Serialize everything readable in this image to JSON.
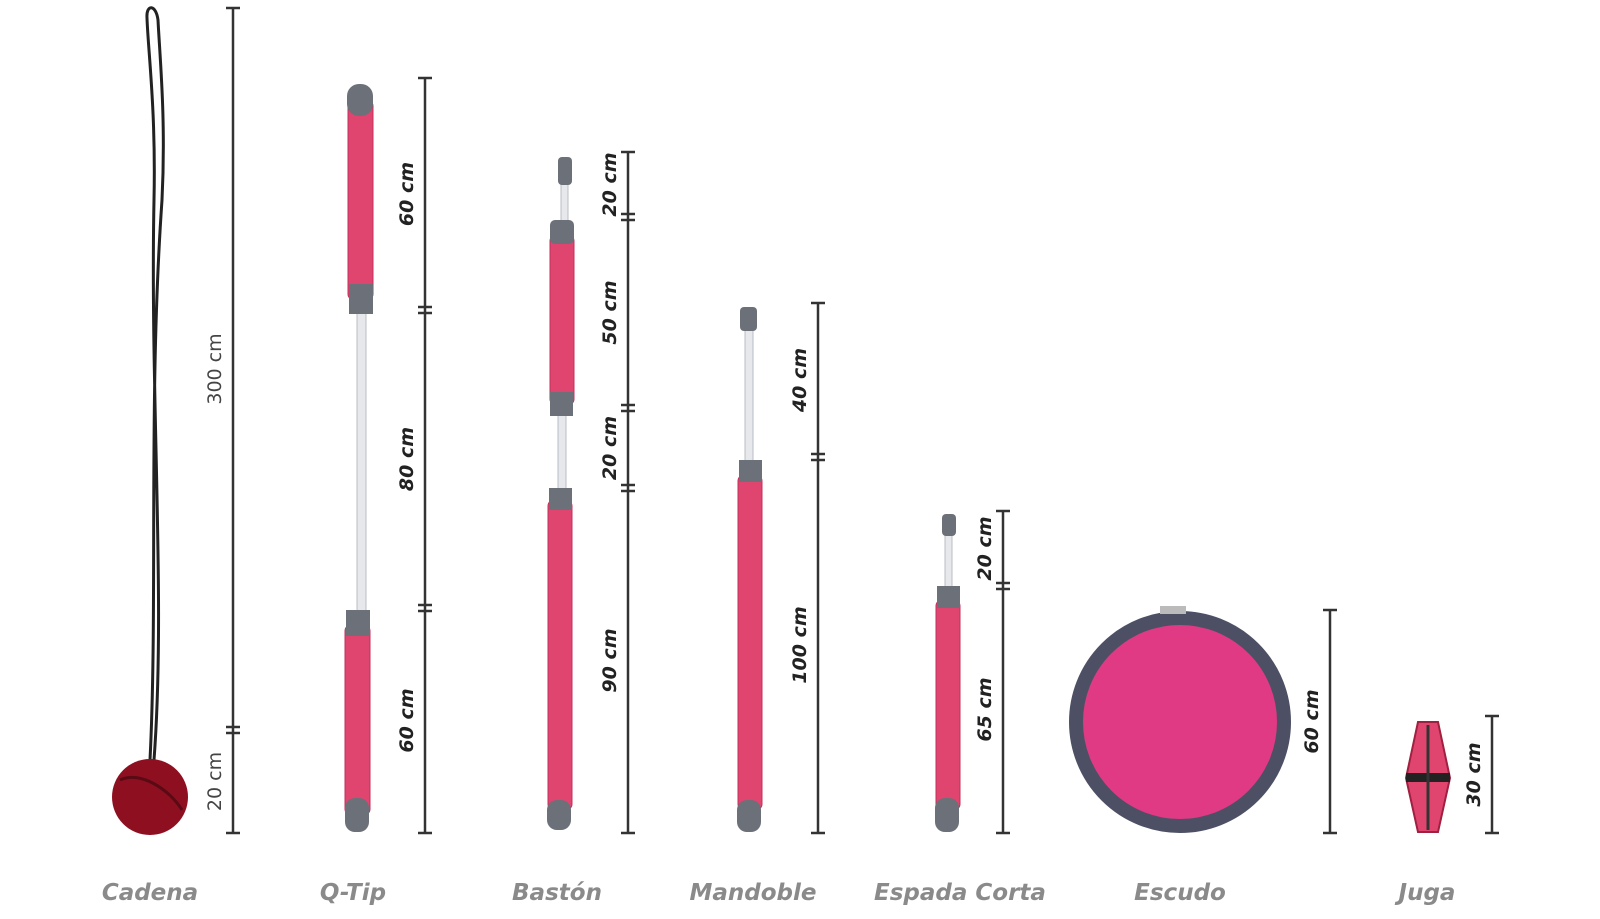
{
  "items": [
    {
      "name": "Cadena",
      "measurements": [
        "300 cm",
        "20 cm"
      ]
    },
    {
      "name": "Q-Tip",
      "measurements": [
        "60 cm",
        "80 cm",
        "60 cm"
      ]
    },
    {
      "name": "Bastón",
      "measurements": [
        "20 cm",
        "50 cm",
        "20 cm",
        "90 cm"
      ]
    },
    {
      "name": "Mandoble",
      "measurements": [
        "40 cm",
        "100 cm"
      ]
    },
    {
      "name": "Espada Corta",
      "measurements": [
        "20 cm",
        "65 cm"
      ]
    },
    {
      "name": "Escudo",
      "measurements": [
        "60 cm"
      ]
    },
    {
      "name": "Juga",
      "measurements": [
        "30 cm"
      ]
    }
  ]
}
